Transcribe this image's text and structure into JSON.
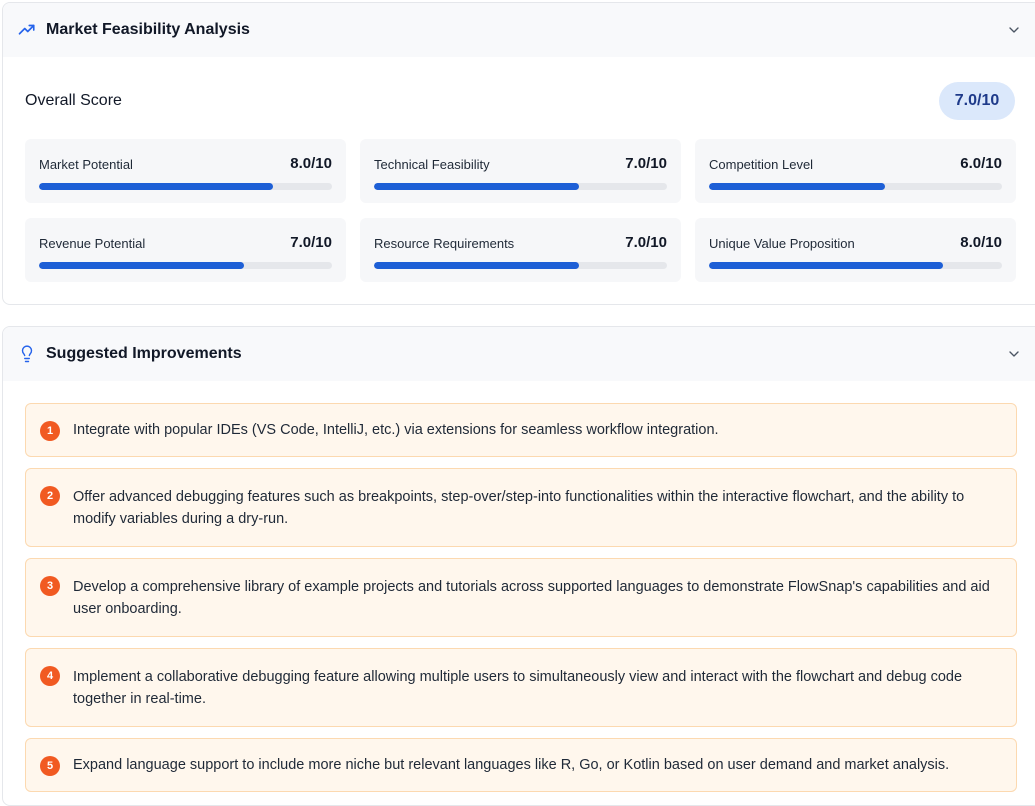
{
  "feasibility": {
    "title": "Market Feasibility Analysis",
    "overall_label": "Overall Score",
    "overall_score": "7.0/10",
    "metrics": [
      {
        "label": "Market Potential",
        "score": "8.0/10",
        "value": 8.0
      },
      {
        "label": "Technical Feasibility",
        "score": "7.0/10",
        "value": 7.0
      },
      {
        "label": "Competition Level",
        "score": "6.0/10",
        "value": 6.0
      },
      {
        "label": "Revenue Potential",
        "score": "7.0/10",
        "value": 7.0
      },
      {
        "label": "Resource Requirements",
        "score": "7.0/10",
        "value": 7.0
      },
      {
        "label": "Unique Value Proposition",
        "score": "8.0/10",
        "value": 8.0
      }
    ],
    "max": 10,
    "icon": "trending-up-icon"
  },
  "improvements": {
    "title": "Suggested Improvements",
    "icon": "lightbulb-icon",
    "items": [
      {
        "num": "1",
        "text": "Integrate with popular IDEs (VS Code, IntelliJ, etc.) via extensions for seamless workflow integration."
      },
      {
        "num": "2",
        "text": "Offer advanced debugging features such as breakpoints, step-over/step-into functionalities within the interactive flowchart, and the ability to modify variables during a dry-run."
      },
      {
        "num": "3",
        "text": "Develop a comprehensive library of example projects and tutorials across supported languages to demonstrate FlowSnap's capabilities and aid user onboarding."
      },
      {
        "num": "4",
        "text": "Implement a collaborative debugging feature allowing multiple users to simultaneously view and interact with the flowchart and debug code together in real-time."
      },
      {
        "num": "5",
        "text": "Expand language support to include more niche but relevant languages like R, Go, or Kotlin based on user demand and market analysis."
      }
    ]
  },
  "colors": {
    "accent": "#1d5fd6",
    "badge": "#f15a22",
    "item_bg": "#fff7ed",
    "item_border": "#fcd9b0",
    "pill_bg": "#dbe8fb"
  }
}
